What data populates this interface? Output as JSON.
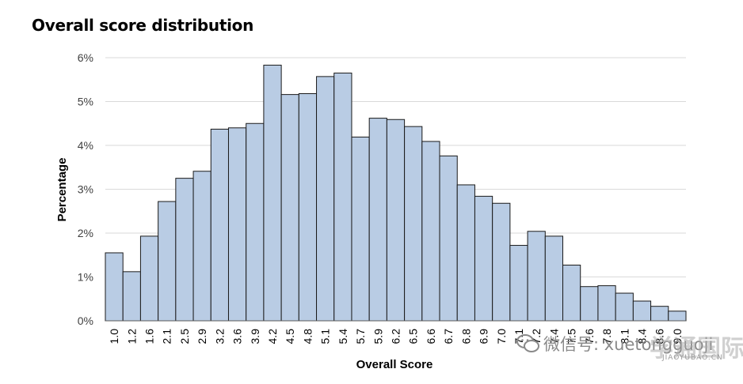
{
  "chart_title": "Overall score distribution",
  "chart_data": {
    "type": "bar",
    "title": "Overall score distribution",
    "xlabel": "Overall Score",
    "ylabel": "Percentage",
    "ylim": [
      0,
      6
    ],
    "yticks": [
      "0%",
      "1%",
      "2%",
      "3%",
      "4%",
      "5%",
      "6%"
    ],
    "categories": [
      "1.0",
      "1.2",
      "1.6",
      "2.1",
      "2.5",
      "2.9",
      "3.2",
      "3.6",
      "3.9",
      "4.2",
      "4.5",
      "4.8",
      "5.1",
      "5.4",
      "5.7",
      "5.9",
      "6.2",
      "6.5",
      "6.6",
      "6.7",
      "6.8",
      "6.9",
      "7.0",
      "7.1",
      "7.2",
      "7.4",
      "7.5",
      "7.6",
      "7.8",
      "8.1",
      "8.4",
      "8.6",
      "9.0"
    ],
    "values": [
      1.55,
      1.12,
      1.93,
      2.72,
      3.25,
      3.41,
      4.37,
      4.4,
      4.5,
      5.83,
      5.16,
      5.18,
      5.57,
      5.65,
      4.19,
      4.62,
      4.59,
      4.43,
      4.09,
      3.76,
      3.1,
      2.84,
      2.68,
      1.72,
      2.04,
      1.93,
      1.27,
      0.78,
      0.8,
      0.63,
      0.45,
      0.33,
      0.22
    ],
    "grid": true,
    "bar_color": "#b9cce4",
    "bar_edge_color": "#1a1a1a",
    "grid_color": "#d9d9d9"
  },
  "watermark": {
    "icon": "wechat-icon",
    "text": "微信号: xuetongguoji",
    "logo": "学通国际",
    "sub": "JIAOYUBAO.CN"
  }
}
